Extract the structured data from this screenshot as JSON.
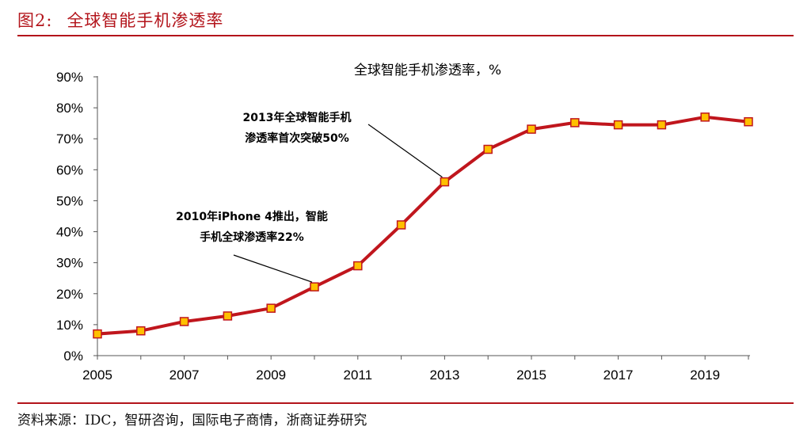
{
  "figure": {
    "label": "图2:",
    "title": "全球智能手机渗透率",
    "source": "资料来源：IDC，智研咨询，国际电子商情，浙商证券研究"
  },
  "colors": {
    "accent": "#b3141b",
    "line": "#c0161d",
    "marker_fill": "#ffc000",
    "marker_stroke": "#c0161d"
  },
  "chart_data": {
    "type": "line",
    "title": "全球智能手机渗透率，%",
    "x": [
      2005,
      2006,
      2007,
      2008,
      2009,
      2010,
      2011,
      2012,
      2013,
      2014,
      2015,
      2016,
      2017,
      2018,
      2019,
      2020
    ],
    "series": [
      {
        "values": [
          7,
          8,
          11,
          12.8,
          15.3,
          22.2,
          29,
          42.2,
          56.1,
          66.6,
          73.1,
          75.2,
          74.5,
          74.5,
          77,
          75.5
        ]
      }
    ],
    "xticks": [
      "2005",
      "2007",
      "2009",
      "2011",
      "2013",
      "2015",
      "2017",
      "2019"
    ],
    "yticks": [
      "0%",
      "10%",
      "20%",
      "30%",
      "40%",
      "50%",
      "60%",
      "70%",
      "80%",
      "90%"
    ],
    "ylim": [
      0,
      90
    ],
    "grid": false,
    "annotations": [
      {
        "lines": [
          "2013年全球智能手机",
          "渗透率首次突破50%"
        ],
        "x": 2013,
        "y": 56.1
      },
      {
        "lines": [
          "2010年iPhone 4推出，智能",
          "手机全球渗透率22%"
        ],
        "x": 2010,
        "y": 22.2
      }
    ]
  }
}
